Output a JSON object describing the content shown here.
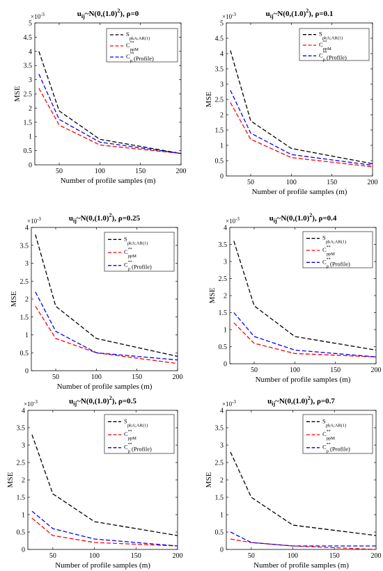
{
  "colors": {
    "black": "#000000",
    "red": "#ff0000",
    "blue": "#0000ff"
  },
  "chart_data": [
    {
      "type": "line",
      "title": "u_ij~N(0,(1.0)^2), ρ=0",
      "title_parts": {
        "main": "u",
        "sub": "ij",
        "mid": "~N(0,(1.0)",
        "sup": "2",
        "tail": "), ρ=0"
      },
      "xlabel": "Number of profile samples (m)",
      "ylabel": "MSE",
      "y_exponent": "×10",
      "y_exponent_power": "-3",
      "xlim": [
        20,
        200
      ],
      "ylim": [
        0,
        5
      ],
      "xticks": [
        50,
        100,
        150,
        200
      ],
      "yticks": [
        0,
        0.5,
        1,
        1.5,
        2,
        2.5,
        3,
        3.5,
        4,
        4.5,
        5
      ],
      "ytick_labels": [
        "0",
        "0.5",
        "1",
        "1.5",
        "2",
        "2.5",
        "3",
        "3.5",
        "4",
        "4.5",
        "5"
      ],
      "x": [
        25,
        50,
        100,
        200
      ],
      "series": [
        {
          "values": [
            4.0,
            1.9,
            0.9,
            0.4
          ],
          "color": "black",
          "dash": "dashed"
        },
        {
          "values": [
            2.7,
            1.4,
            0.7,
            0.4
          ],
          "color": "red",
          "dash": "dashed"
        },
        {
          "values": [
            3.2,
            1.6,
            0.8,
            0.4
          ],
          "color": "blue",
          "dash": "dashed"
        }
      ]
    },
    {
      "type": "line",
      "title": "u_ij~N(0,(1.0)^2), ρ=0.1",
      "title_parts": {
        "main": "u",
        "sub": "ij",
        "mid": "~N(0,(1.0)",
        "sup": "2",
        "tail": "), ρ=0.1"
      },
      "xlabel": "Number of profile samples (m)",
      "ylabel": "MSE",
      "y_exponent": "×10",
      "y_exponent_power": "-3",
      "xlim": [
        20,
        200
      ],
      "ylim": [
        0,
        5
      ],
      "xticks": [
        50,
        100,
        150,
        200
      ],
      "yticks": [
        0,
        0.5,
        1,
        1.5,
        2,
        2.5,
        3,
        3.5,
        4,
        4.5,
        5
      ],
      "ytick_labels": [
        "0",
        "0.5",
        "1",
        "1.5",
        "2",
        "2.5",
        "3",
        "3.5",
        "4",
        "4.5",
        "5"
      ],
      "x": [
        25,
        50,
        100,
        200
      ],
      "series": [
        {
          "values": [
            4.1,
            1.8,
            0.9,
            0.4
          ],
          "color": "black",
          "dash": "dashed"
        },
        {
          "values": [
            2.4,
            1.2,
            0.6,
            0.3
          ],
          "color": "red",
          "dash": "dashed"
        },
        {
          "values": [
            2.8,
            1.4,
            0.7,
            0.35
          ],
          "color": "blue",
          "dash": "dashed"
        }
      ]
    },
    {
      "type": "line",
      "title": "u_ij~N(0,(1.0)^2), ρ=0.25",
      "title_parts": {
        "main": "u",
        "sub": "ij",
        "mid": "~N(0,(1.0)",
        "sup": "2",
        "tail": "), ρ=0.25"
      },
      "xlabel": "Number of profile samples (m)",
      "ylabel": "MSE",
      "y_exponent": "×10",
      "y_exponent_power": "-3",
      "xlim": [
        20,
        200
      ],
      "ylim": [
        0,
        4
      ],
      "xticks": [
        50,
        100,
        150,
        200
      ],
      "yticks": [
        0,
        0.5,
        1,
        1.5,
        2,
        2.5,
        3,
        3.5,
        4
      ],
      "ytick_labels": [
        "0",
        "0.5",
        "1",
        "1.5",
        "2",
        "2.5",
        "3",
        "3.5",
        "4"
      ],
      "x": [
        25,
        50,
        100,
        200
      ],
      "series": [
        {
          "values": [
            3.8,
            1.8,
            0.9,
            0.4
          ],
          "color": "black",
          "dash": "dashed"
        },
        {
          "values": [
            1.8,
            0.9,
            0.5,
            0.2
          ],
          "color": "red",
          "dash": "dashed"
        },
        {
          "values": [
            2.2,
            1.1,
            0.5,
            0.3
          ],
          "color": "blue",
          "dash": "dashed"
        }
      ]
    },
    {
      "type": "line",
      "title": "u_ij~N(0,(1.0)^2), ρ=0.4",
      "title_parts": {
        "main": "u",
        "sub": "ij",
        "mid": "~N(0,(1.0)",
        "sup": "2",
        "tail": "), ρ=0.4"
      },
      "xlabel": "Number of profile samples (m)",
      "ylabel": "MSE",
      "y_exponent": "×10",
      "y_exponent_power": "-3",
      "xlim": [
        20,
        200
      ],
      "ylim": [
        0,
        4
      ],
      "xticks": [
        50,
        100,
        150,
        200
      ],
      "yticks": [
        0,
        0.5,
        1,
        1.5,
        2,
        2.5,
        3,
        3.5,
        4
      ],
      "ytick_labels": [
        "0",
        "0.5",
        "1",
        "1.5",
        "2",
        "2.5",
        "3",
        "3.5",
        "4"
      ],
      "x": [
        25,
        50,
        100,
        200
      ],
      "series": [
        {
          "values": [
            3.6,
            1.7,
            0.8,
            0.4
          ],
          "color": "black",
          "dash": "dashed"
        },
        {
          "values": [
            1.2,
            0.6,
            0.3,
            0.2
          ],
          "color": "red",
          "dash": "dashed"
        },
        {
          "values": [
            1.5,
            0.8,
            0.4,
            0.2
          ],
          "color": "blue",
          "dash": "dashed"
        }
      ]
    },
    {
      "type": "line",
      "title": "u_ij~N(0,(1.0)^2), ρ=0.5",
      "title_parts": {
        "main": "u",
        "sub": "ij",
        "mid": "~N(0,(1.0)",
        "sup": "2",
        "tail": "), ρ=0.5"
      },
      "xlabel": "Number of profile samples (m)",
      "ylabel": "MSE",
      "y_exponent": "×10",
      "y_exponent_power": "-3",
      "xlim": [
        20,
        200
      ],
      "ylim": [
        0,
        4
      ],
      "xticks": [
        50,
        100,
        150,
        200
      ],
      "yticks": [
        0,
        0.5,
        1,
        1.5,
        2,
        2.5,
        3,
        3.5,
        4
      ],
      "ytick_labels": [
        "0",
        "0.5",
        "1",
        "1.5",
        "2",
        "2.5",
        "3",
        "3.5",
        "4"
      ],
      "x": [
        25,
        50,
        100,
        200
      ],
      "series": [
        {
          "values": [
            3.3,
            1.6,
            0.8,
            0.4
          ],
          "color": "black",
          "dash": "dashed"
        },
        {
          "values": [
            0.9,
            0.4,
            0.2,
            0.1
          ],
          "color": "red",
          "dash": "dashed"
        },
        {
          "values": [
            1.1,
            0.6,
            0.3,
            0.1
          ],
          "color": "blue",
          "dash": "dashed"
        }
      ]
    },
    {
      "type": "line",
      "title": "u_ij~N(0,(1.0)^2), ρ=0.7",
      "title_parts": {
        "main": "u",
        "sub": "ij",
        "mid": "~N(0,(1.0)",
        "sup": "2",
        "tail": "), ρ=0.7"
      },
      "xlabel": "Number of profile samples (m)",
      "ylabel": "MSE",
      "y_exponent": "×10",
      "y_exponent_power": "-3",
      "xlim": [
        20,
        200
      ],
      "ylim": [
        0,
        4
      ],
      "xticks": [
        50,
        100,
        150,
        200
      ],
      "yticks": [
        0,
        0.5,
        1,
        1.5,
        2,
        2.5,
        3,
        3.5,
        4
      ],
      "ytick_labels": [
        "0",
        "0.5",
        "1",
        "1.5",
        "2",
        "2.5",
        "3",
        "3.5",
        "4"
      ],
      "x": [
        25,
        50,
        100,
        200
      ],
      "series": [
        {
          "values": [
            2.8,
            1.5,
            0.7,
            0.4
          ],
          "color": "black",
          "dash": "dashed"
        },
        {
          "values": [
            0.3,
            0.2,
            0.1,
            0.0
          ],
          "color": "red",
          "dash": "dashed"
        },
        {
          "values": [
            0.5,
            0.2,
            0.1,
            0.1
          ],
          "color": "blue",
          "dash": "dashed"
        }
      ]
    }
  ],
  "legend": [
    {
      "symbol": "S",
      "sub": "pkA;AR(1)",
      "sup": "",
      "suffix": ""
    },
    {
      "symbol": "C",
      "sub": "ppM",
      "sup": "**",
      "suffix": ""
    },
    {
      "symbol": "C",
      "sub": "p",
      "sup": "**",
      "suffix": "(Profile)"
    }
  ]
}
